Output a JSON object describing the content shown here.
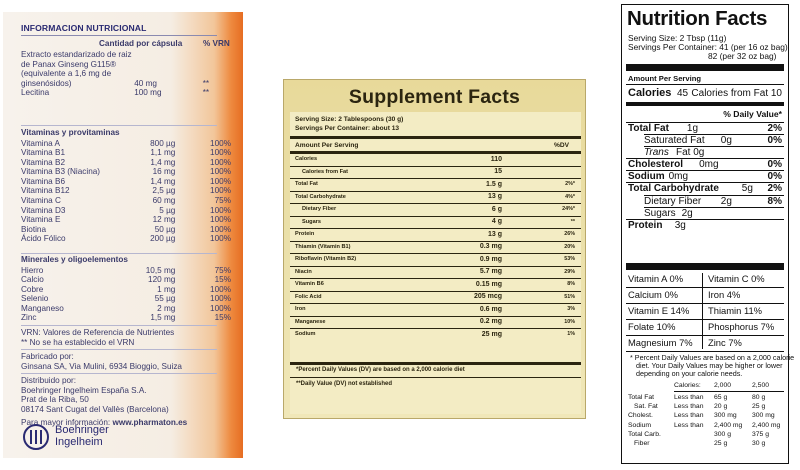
{
  "panel1": {
    "title": "INFORMACION NUTRICIONAL",
    "col_qty": "Cantidad por cápsula",
    "col_vrn": "% VRN",
    "extract_lines": [
      "Extracto estandarizado de raiz",
      "de Panax Ginseng G115®",
      "(equivalente a 1,6 mg de",
      "ginsenósidos)"
    ],
    "extract_qty": "40 mg",
    "extract_vrn": "**",
    "lecitina": {
      "name": "Lecitina",
      "qty": "100 mg",
      "vrn": "**"
    },
    "vitamins_heading": "Vitaminas y provitaminas",
    "vitamins": [
      {
        "name": "Vitamina A",
        "qty": "800 µg",
        "vrn": "100%"
      },
      {
        "name": "Vitamina B1",
        "qty": "1,1 mg",
        "vrn": "100%"
      },
      {
        "name": "Vitamina B2",
        "qty": "1,4 mg",
        "vrn": "100%"
      },
      {
        "name": "Vitamina B3 (Niacina)",
        "qty": "16 mg",
        "vrn": "100%"
      },
      {
        "name": "Vitamina B6",
        "qty": "1,4 mg",
        "vrn": "100%"
      },
      {
        "name": "Vitamina B12",
        "qty": "2,5 µg",
        "vrn": "100%"
      },
      {
        "name": "Vitamina C",
        "qty": "60 mg",
        "vrn": "75%"
      },
      {
        "name": "Vitamina D3",
        "qty": "5 µg",
        "vrn": "100%"
      },
      {
        "name": "Vitamina E",
        "qty": "12 mg",
        "vrn": "100%"
      },
      {
        "name": "Biotina",
        "qty": "50 µg",
        "vrn": "100%"
      },
      {
        "name": "Ácido Fólico",
        "qty": "200 µg",
        "vrn": "100%"
      }
    ],
    "minerals_heading": "Minerales y oligoelementos",
    "minerals": [
      {
        "name": "Hierro",
        "qty": "10,5 mg",
        "vrn": "75%"
      },
      {
        "name": "Calcio",
        "qty": "120 mg",
        "vrn": "15%"
      },
      {
        "name": "Cobre",
        "qty": "1 mg",
        "vrn": "100%"
      },
      {
        "name": "Selenio",
        "qty": "55 µg",
        "vrn": "100%"
      },
      {
        "name": "Manganeso",
        "qty": "2 mg",
        "vrn": "100%"
      },
      {
        "name": "Zinc",
        "qty": "1,5 mg",
        "vrn": "15%"
      }
    ],
    "notes": [
      "VRN: Valores de Referencia de Nutrientes",
      "** No se ha establecido el VRN"
    ],
    "manufacturer_label": "Fabricado por:",
    "manufacturer": "Ginsana SA, Via Mulini, 6934 Bioggio, Suiza",
    "distributor_label": "Distribuido por:",
    "distributor_lines": [
      "Boehringer Ingelheim España S.A.",
      "Prat de la Riba, 50",
      "08174 Sant Cugat del Vallès (Barcelona)"
    ],
    "info_prefix": "Para mayor información:",
    "info_url": "www.pharmaton.es",
    "brand_lines": [
      "Boehringer",
      "Ingelheim"
    ],
    "colors": {
      "text": "#3a3a6a",
      "accent": "#e66d22"
    }
  },
  "panel2": {
    "title": "Supplement Facts",
    "serving_size": "Serving Size: 2 Tablespoons (30 g)",
    "servings_per_container": "Servings Per Container: about 13",
    "amount_header": "Amount Per Serving",
    "dv_header": "%DV",
    "rows": [
      {
        "name": "Calories",
        "amount": "110",
        "dv": "",
        "indent": false
      },
      {
        "name": "Calories from Fat",
        "amount": "15",
        "dv": "",
        "indent": true
      },
      {
        "name": "Total Carbohydrate",
        "amount": "",
        "dv": "",
        "indent": false
      },
      {
        "name": "Total Fat",
        "amount": "1.5 g",
        "dv": "2%*",
        "indent": false
      },
      {
        "name": "Total Carbohydrate",
        "amount": "13 g",
        "dv": "4%*",
        "indent": false
      },
      {
        "name": "Dietary Fiber",
        "amount": "6 g",
        "dv": "24%*",
        "indent": true
      },
      {
        "name": "Sugars",
        "amount": "4 g",
        "dv": "**",
        "indent": true
      },
      {
        "name": "Protein",
        "amount": "13 g",
        "dv": "26%",
        "indent": false
      },
      {
        "name": "Thiamin (Vitamin B1)",
        "amount": "0.3 mg",
        "dv": "20%",
        "indent": false
      },
      {
        "name": "Riboflavin (Vitamin B2)",
        "amount": "0.9 mg",
        "dv": "53%",
        "indent": false
      },
      {
        "name": "Niacin",
        "amount": "5.7 mg",
        "dv": "29%",
        "indent": false
      },
      {
        "name": "Vitamin B6",
        "amount": "0.15 mg",
        "dv": "8%",
        "indent": false
      },
      {
        "name": "Folic Acid",
        "amount": "205 mcg",
        "dv": "51%",
        "indent": false
      },
      {
        "name": "Iron",
        "amount": "0.6 mg",
        "dv": "3%",
        "indent": false
      },
      {
        "name": "Manganese",
        "amount": "0.2 mg",
        "dv": "10%",
        "indent": false
      },
      {
        "name": "Sodium",
        "amount": "25 mg",
        "dv": "1%",
        "indent": false
      }
    ],
    "footnote1": "*Percent Daily Values (DV) are based on a 2,000 calorie diet",
    "footnote2": "**Daily Value (DV) not established",
    "colors": {
      "frame": "#e8d99a",
      "text": "#2b2510"
    }
  },
  "panel3": {
    "title": "Nutrition Facts",
    "serving_size": "Serving Size: 2 Tbsp (11g)",
    "servings_line1": "Servings Per Container: 41 (per 16 oz bag)",
    "servings_line2": "82 (per 32 oz bag)",
    "amount_per_serving": "Amount Per Serving",
    "calories_label": "Calories",
    "calories_value": "45",
    "calories_from_fat": "Calories from Fat 10",
    "dv_header": "% Daily Value*",
    "nutrients": [
      {
        "name": "Total Fat",
        "amount": "1g",
        "dv": "2%",
        "bold": true,
        "indent": false
      },
      {
        "name": "Saturated Fat",
        "amount": "0g",
        "dv": "0%",
        "bold": false,
        "indent": true
      },
      {
        "name": "Trans",
        "amount": "Fat 0g",
        "dv": "",
        "bold": false,
        "indent": true,
        "italic": true
      },
      {
        "name": "Cholesterol",
        "amount": "0mg",
        "dv": "0%",
        "bold": true,
        "indent": false
      },
      {
        "name": "Sodium",
        "amount": "0mg",
        "dv": "0%",
        "bold": true,
        "indent": false
      },
      {
        "name": "Total Carbohydrate",
        "amount": "5g",
        "dv": "2%",
        "bold": true,
        "indent": false
      },
      {
        "name": "Dietary Fiber",
        "amount": "2g",
        "dv": "8%",
        "bold": false,
        "indent": true
      },
      {
        "name": "Sugars",
        "amount": "2g",
        "dv": "",
        "bold": false,
        "indent": true
      },
      {
        "name": "Protein",
        "amount": "3g",
        "dv": "",
        "bold": true,
        "indent": false
      }
    ],
    "vitamins_left": [
      "Vitamin A 0%",
      "Calcium 0%",
      "Vitamin E 14%",
      "Folate 10%",
      "Magnesium 7%"
    ],
    "vitamins_right": [
      "Vitamin C 0%",
      "Iron 4%",
      "Thiamin 11%",
      "Phosphorus 7%",
      "Zinc 7%"
    ],
    "footnote_lines": [
      "* Percent Daily Values are based on a 2,000 calorie",
      "diet. Your Daily Values may be higher or lower",
      "depending on your calorie needs."
    ],
    "table_header": [
      "Calories:",
      "2,000",
      "2,500"
    ],
    "table_rows": [
      [
        "Total Fat",
        "Less than",
        "65 g",
        "80 g"
      ],
      [
        "Sat. Fat",
        "Less than",
        "20 g",
        "25 g"
      ],
      [
        "Cholest.",
        "Less than",
        "300 mg",
        "300 mg"
      ],
      [
        "Sodium",
        "Less than",
        "2,400 mg",
        "2,400 mg"
      ],
      [
        "Total Carb.",
        "",
        "300 g",
        "375 g"
      ],
      [
        "Fiber",
        "",
        "25 g",
        "30 g"
      ]
    ]
  }
}
